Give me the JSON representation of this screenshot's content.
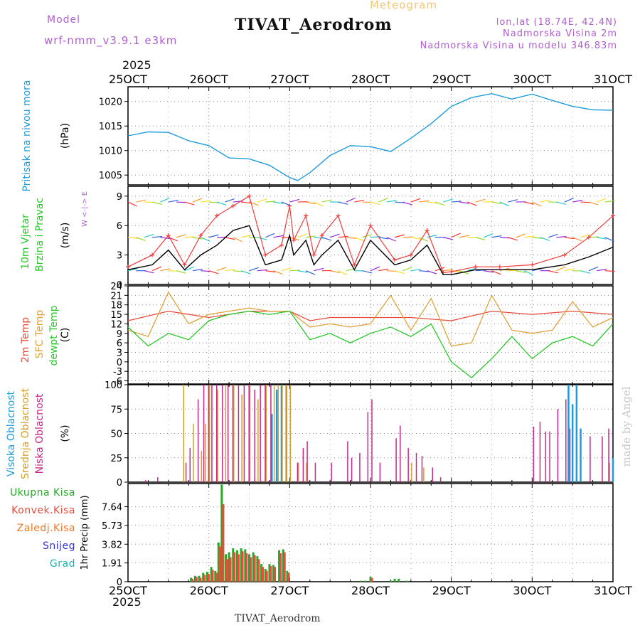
{
  "header": {
    "model_label": "Model",
    "model_name": "wrf-nmm_v3.9.1  e3km",
    "meteogram_label": "Meteogram",
    "station_title": "TIVAT_Aerodrom",
    "lonlat": "lon,lat (18.74E, 42.4N)",
    "altitude": "Nadmorska Visina 2m",
    "model_altitude": "Nadmorska Visina u modelu 346.83m",
    "year_top": "2025",
    "year_bottom": "2025",
    "footer_title": "TIVAT_Aerodrom",
    "watermark": "made by Angel"
  },
  "colors": {
    "pressure": "#1e9bdc",
    "wind_speed": "#000000",
    "wind_gust": "#f03c3c",
    "t2m": "#e84c3c",
    "tsfc": "#e0a23c",
    "dewpt": "#28c828",
    "high_cloud": "#1e9bdc",
    "mid_cloud": "#d4a028",
    "low_cloud": "#c8288c",
    "total_precip": "#28a828",
    "conv_precip": "#e84c3c",
    "ice_precip": "#f07828",
    "snow": "#3232dc",
    "grad": "#1eb4b4",
    "model_label": "#b060d0"
  },
  "chart_data": [
    {
      "type": "line",
      "name": "pressure",
      "ylabel_left": "Pritisak na nivou mora",
      "unit": "(hPa)",
      "x_categories": [
        "25OCT",
        "26OCT",
        "27OCT",
        "28OCT",
        "29OCT",
        "30OCT",
        "31OCT"
      ],
      "ylim": [
        1003,
        1023
      ],
      "yticks": [
        1005,
        1010,
        1015,
        1020
      ],
      "x": [
        0,
        0.25,
        0.5,
        0.75,
        1.0,
        1.25,
        1.5,
        1.75,
        2.0,
        2.1,
        2.25,
        2.5,
        2.75,
        3.0,
        3.25,
        3.5,
        3.75,
        4.0,
        4.25,
        4.5,
        4.75,
        5.0,
        5.25,
        5.5,
        5.75,
        6.0
      ],
      "values": [
        1013,
        1013.8,
        1013.7,
        1012,
        1011,
        1008.5,
        1008.3,
        1007,
        1004.5,
        1003.9,
        1005.5,
        1009,
        1011,
        1010.8,
        1009.8,
        1012.5,
        1015.5,
        1019,
        1020.8,
        1021.6,
        1020.5,
        1021.5,
        1020.2,
        1019,
        1018.3,
        1018.2
      ]
    },
    {
      "type": "line",
      "name": "wind",
      "ylabel_left": "10m Vjetar",
      "ylabel_left2": "Brzina i Pravac",
      "unit": "(m/s)",
      "compass": "W  <-|->  E",
      "ylim": [
        0,
        10
      ],
      "yticks": [
        0,
        3,
        6,
        9
      ],
      "series": [
        {
          "name": "speed",
          "x": [
            0,
            0.3,
            0.5,
            0.7,
            0.9,
            1.1,
            1.3,
            1.5,
            1.7,
            1.9,
            2.0,
            2.05,
            2.2,
            2.3,
            2.4,
            2.6,
            2.8,
            3.0,
            3.3,
            3.5,
            3.7,
            3.9,
            4.0,
            4.3,
            4.6,
            5.0,
            5.4,
            5.7,
            6.0
          ],
          "values": [
            1.5,
            2,
            3.5,
            1.5,
            3,
            4,
            5.5,
            6,
            2,
            2.5,
            5,
            3,
            4.5,
            2,
            3,
            4.5,
            1.5,
            4.5,
            2,
            2.5,
            4,
            1,
            1,
            1.5,
            1.5,
            1.5,
            2,
            2.8,
            3.8
          ]
        },
        {
          "name": "gust",
          "x": [
            0,
            0.3,
            0.5,
            0.7,
            0.9,
            1.1,
            1.3,
            1.5,
            1.7,
            1.9,
            2.0,
            2.05,
            2.2,
            2.3,
            2.4,
            2.6,
            2.8,
            3.0,
            3.3,
            3.5,
            3.7,
            3.9,
            4.0,
            4.3,
            4.6,
            5.0,
            5.4,
            5.7,
            6.0
          ],
          "values": [
            1.8,
            3,
            5,
            2,
            5,
            7,
            8,
            9,
            3,
            4,
            8,
            4.5,
            7,
            3,
            5,
            7,
            2,
            6,
            2.5,
            3,
            5.5,
            1.2,
            1.3,
            1.8,
            1.8,
            2,
            3,
            4.8,
            7
          ]
        }
      ]
    },
    {
      "type": "line",
      "name": "temperature",
      "ylabel_left": "2m Temp",
      "ylabel_left2": "SFC Temp",
      "ylabel_left3": "dewpt Temp",
      "unit": "(C)",
      "ylim": [
        -7,
        24
      ],
      "yticks": [
        -6,
        -3,
        0,
        3,
        6,
        9,
        12,
        15,
        18,
        21,
        24
      ],
      "series": [
        {
          "name": "t2m",
          "x": [
            0,
            0.5,
            1.0,
            1.5,
            2.0,
            2.25,
            2.5,
            3.0,
            3.5,
            4.0,
            4.5,
            5.0,
            5.5,
            6.0
          ],
          "values": [
            13,
            16,
            14,
            16,
            16,
            13,
            14,
            14,
            14,
            13,
            16,
            15,
            16,
            15
          ]
        },
        {
          "name": "tsfc",
          "x": [
            0,
            0.25,
            0.5,
            0.75,
            1.0,
            1.25,
            1.5,
            1.75,
            2.0,
            2.25,
            2.5,
            2.75,
            3.0,
            3.25,
            3.5,
            3.75,
            4.0,
            4.25,
            4.5,
            4.75,
            5.0,
            5.25,
            5.5,
            5.75,
            6.0
          ],
          "values": [
            10,
            8,
            22,
            12,
            15,
            16,
            17,
            16,
            16,
            11,
            12,
            11,
            12,
            21,
            10,
            20,
            5,
            6,
            21,
            10,
            9,
            10,
            19,
            11,
            14
          ]
        },
        {
          "name": "dewpt",
          "x": [
            0,
            0.25,
            0.5,
            0.75,
            1.0,
            1.25,
            1.5,
            1.75,
            2.0,
            2.25,
            2.5,
            2.75,
            3.0,
            3.25,
            3.5,
            3.75,
            4.0,
            4.25,
            4.5,
            4.75,
            5.0,
            5.25,
            5.5,
            5.75,
            6.0
          ],
          "values": [
            11,
            5,
            9,
            7,
            13,
            15,
            16,
            15,
            16,
            7,
            9,
            6,
            9,
            11,
            8,
            12,
            0,
            -5,
            1,
            8,
            1,
            6,
            8,
            5,
            12
          ]
        }
      ]
    },
    {
      "type": "bar",
      "name": "cloud_cover",
      "ylabel_left": "Visoka Oblacnost",
      "ylabel_left2": "Srednja Oblacnost",
      "ylabel_left3": "Niska Oblacnost",
      "unit": "(%)",
      "ylim": [
        0,
        100
      ],
      "yticks": [
        0,
        25,
        50,
        75,
        100
      ],
      "series": [
        {
          "name": "high",
          "x": [
            1.78,
            1.84,
            1.9,
            1.96,
            5.45,
            5.5,
            5.55,
            5.6,
            6.0
          ],
          "values": [
            70,
            95,
            100,
            100,
            100,
            80,
            100,
            55,
            25
          ]
        },
        {
          "name": "mid",
          "x": [
            0.68,
            0.8,
            0.9,
            0.95,
            1.0,
            1.1,
            1.2,
            1.3,
            1.4,
            1.5,
            1.6,
            1.7,
            1.8,
            1.85,
            1.9,
            1.95,
            2.0,
            2.1,
            2.2,
            3.5,
            3.65,
            5.95
          ],
          "values": [
            100,
            60,
            32,
            60,
            100,
            95,
            100,
            100,
            90,
            100,
            85,
            100,
            100,
            100,
            100,
            100,
            100,
            20,
            20,
            20,
            15,
            20
          ]
        },
        {
          "name": "low",
          "x": [
            0.2,
            0.35,
            0.7,
            0.75,
            0.85,
            0.92,
            0.98,
            1.02,
            1.08,
            1.15,
            1.22,
            1.28,
            1.35,
            1.42,
            1.48,
            1.55,
            1.62,
            1.68,
            1.75,
            2.08,
            2.15,
            2.2,
            2.3,
            2.5,
            2.7,
            2.75,
            2.85,
            2.95,
            3.0,
            3.1,
            3.3,
            3.35,
            3.45,
            3.55,
            3.62,
            3.75,
            3.85,
            5.0,
            5.08,
            5.15,
            5.2,
            5.3,
            5.4,
            5.45,
            5.7,
            5.85,
            5.93
          ],
          "values": [
            2,
            5,
            20,
            35,
            85,
            100,
            100,
            100,
            100,
            100,
            100,
            100,
            100,
            100,
            100,
            95,
            100,
            100,
            100,
            20,
            35,
            42,
            20,
            20,
            42,
            25,
            30,
            72,
            85,
            20,
            45,
            58,
            35,
            30,
            27,
            15,
            5,
            57,
            62,
            52,
            52,
            75,
            85,
            55,
            47,
            47,
            55
          ]
        }
      ]
    },
    {
      "type": "bar",
      "name": "precipitation",
      "legend": [
        "Ukupna Kisa",
        "Konvek.Kisa",
        "Zaledj.Kisa",
        "Snijeg",
        "Grad"
      ],
      "unit": "1hr Precip (mm)",
      "ylim": [
        0,
        10
      ],
      "yticks": [
        0,
        1.91,
        3.82,
        5.73,
        7.64
      ],
      "ytick_labels": [
        "0",
        "1.91",
        "3.82",
        "5.73",
        "7.64"
      ],
      "series": [
        {
          "name": "total",
          "x": [
            0.78,
            0.83,
            0.88,
            0.93,
            0.98,
            1.03,
            1.08,
            1.12,
            1.16,
            1.21,
            1.25,
            1.3,
            1.35,
            1.4,
            1.45,
            1.5,
            1.55,
            1.6,
            1.65,
            1.7,
            1.75,
            1.8,
            1.87,
            1.92,
            1.97,
            2.88,
            2.93,
            3.0,
            3.25,
            3.3,
            3.35,
            3.45
          ],
          "values": [
            0.4,
            0.6,
            0.6,
            0.9,
            1.0,
            1.5,
            1.1,
            4.0,
            9.9,
            2.8,
            3.0,
            3.4,
            3.2,
            3.4,
            3.3,
            2.8,
            3.0,
            2.6,
            1.8,
            1.3,
            1.8,
            1.7,
            3.2,
            3.3,
            1.1,
            0.1,
            0.1,
            0.5,
            0.1,
            0.3,
            0.3,
            0.1
          ]
        },
        {
          "name": "convective",
          "x": [
            0.78,
            0.83,
            0.88,
            0.93,
            0.98,
            1.03,
            1.08,
            1.12,
            1.16,
            1.21,
            1.25,
            1.3,
            1.35,
            1.4,
            1.45,
            1.5,
            1.55,
            1.6,
            1.65,
            1.7,
            1.75,
            1.8,
            1.87,
            1.92,
            1.97,
            3.0
          ],
          "values": [
            0.3,
            0.5,
            0.4,
            0.7,
            0.8,
            1.2,
            0.9,
            3.6,
            7.9,
            2.3,
            2.5,
            3.0,
            2.8,
            3.1,
            2.9,
            2.5,
            2.7,
            2.3,
            1.5,
            1.1,
            1.6,
            1.5,
            2.9,
            3.0,
            0.9,
            0.4
          ]
        }
      ]
    }
  ]
}
